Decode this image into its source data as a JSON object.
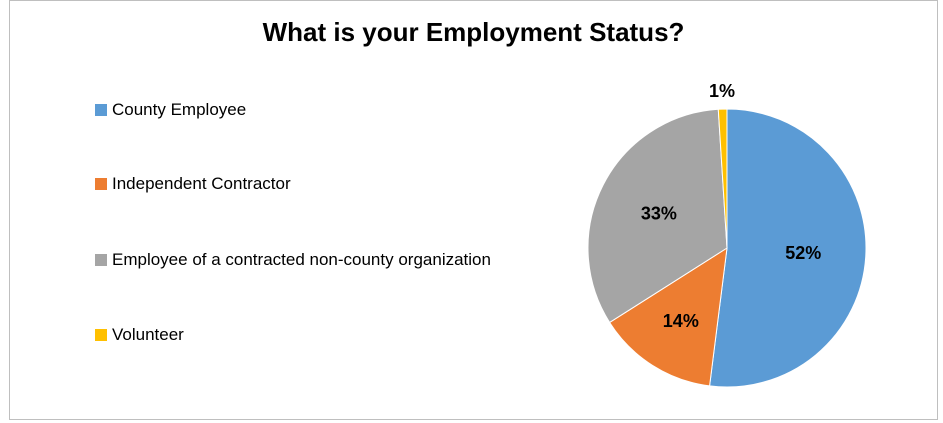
{
  "chart_data": {
    "type": "pie",
    "title": "What is your Employment Status?",
    "categories": [
      "County Employee",
      "Independent Contractor",
      "Employee of a contracted non-county organization",
      "Volunteer"
    ],
    "values": [
      52,
      14,
      33,
      1
    ],
    "labels": [
      "52%",
      "14%",
      "33%",
      "1%"
    ],
    "colors": [
      "#5b9bd5",
      "#ed7d31",
      "#a5a5a5",
      "#ffc000"
    ],
    "legend_position": "left"
  }
}
